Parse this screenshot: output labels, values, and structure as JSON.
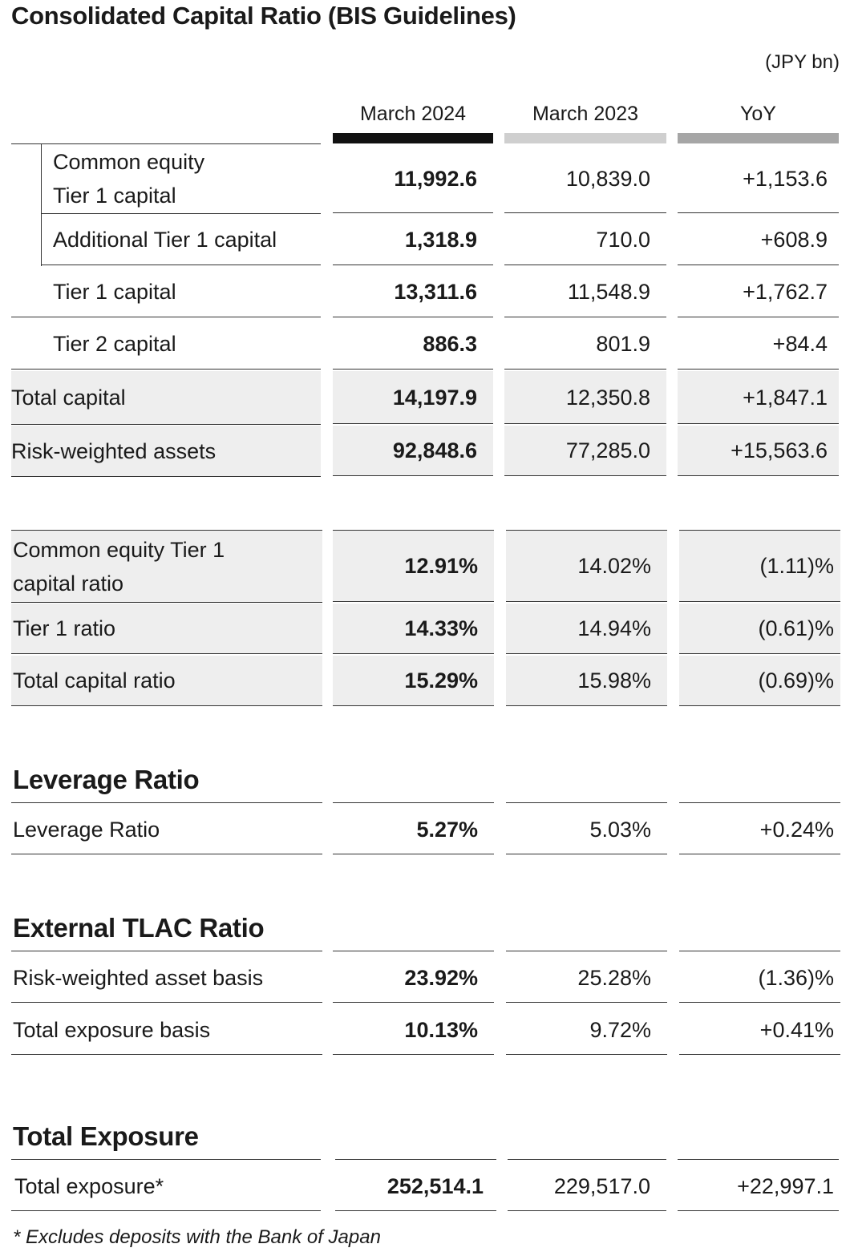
{
  "title": "Consolidated Capital Ratio (BIS Guidelines)",
  "units": "(JPY bn)",
  "columns": [
    "March 2024",
    "March 2023",
    "YoY"
  ],
  "colors": {
    "current_bar": "#111111",
    "prior_bar": "#cfcfcf",
    "yoy_bar": "#a6a6a6",
    "shade": "#eeeeee"
  },
  "capital": [
    {
      "label_line1": "Common equity",
      "label_line2": "Tier 1 capital",
      "v2024": "11,992.6",
      "v2023": "10,839.0",
      "yoy": "+1,153.6"
    },
    {
      "label": "Additional Tier 1 capital",
      "v2024": "1,318.9",
      "v2023": "710.0",
      "yoy": "+608.9"
    },
    {
      "label": "Tier 1 capital",
      "v2024": "13,311.6",
      "v2023": "11,548.9",
      "yoy": "+1,762.7"
    },
    {
      "label": "Tier 2 capital",
      "v2024": "886.3",
      "v2023": "801.9",
      "yoy": "+84.4"
    },
    {
      "label": "Total capital",
      "v2024": "14,197.9",
      "v2023": "12,350.8",
      "yoy": "+1,847.1"
    },
    {
      "label": "Risk-weighted assets",
      "v2024": "92,848.6",
      "v2023": "77,285.0",
      "yoy": "+15,563.6"
    }
  ],
  "ratios": [
    {
      "label_line1": "Common equity Tier 1",
      "label_line2": "capital ratio",
      "v2024": "12.91%",
      "v2023": "14.02%",
      "yoy": "(1.11)%"
    },
    {
      "label": "Tier 1 ratio",
      "v2024": "14.33%",
      "v2023": "14.94%",
      "yoy": "(0.61)%"
    },
    {
      "label": "Total capital ratio",
      "v2024": "15.29%",
      "v2023": "15.98%",
      "yoy": "(0.69)%"
    }
  ],
  "leverage": {
    "heading": "Leverage Ratio",
    "row": {
      "label": "Leverage Ratio",
      "v2024": "5.27%",
      "v2023": "5.03%",
      "yoy": "+0.24%"
    }
  },
  "tlac": {
    "heading": "External TLAC Ratio",
    "rows": [
      {
        "label": "Risk-weighted asset basis",
        "v2024": "23.92%",
        "v2023": "25.28%",
        "yoy": "(1.36)%"
      },
      {
        "label": "Total exposure basis",
        "v2024": "10.13%",
        "v2023": "9.72%",
        "yoy": "+0.41%"
      }
    ]
  },
  "exposure": {
    "heading": "Total Exposure",
    "row": {
      "label": "Total exposure*",
      "v2024": "252,514.1",
      "v2023": "229,517.0",
      "yoy": "+22,997.1"
    }
  },
  "footnote": "* Excludes deposits with the Bank of Japan"
}
